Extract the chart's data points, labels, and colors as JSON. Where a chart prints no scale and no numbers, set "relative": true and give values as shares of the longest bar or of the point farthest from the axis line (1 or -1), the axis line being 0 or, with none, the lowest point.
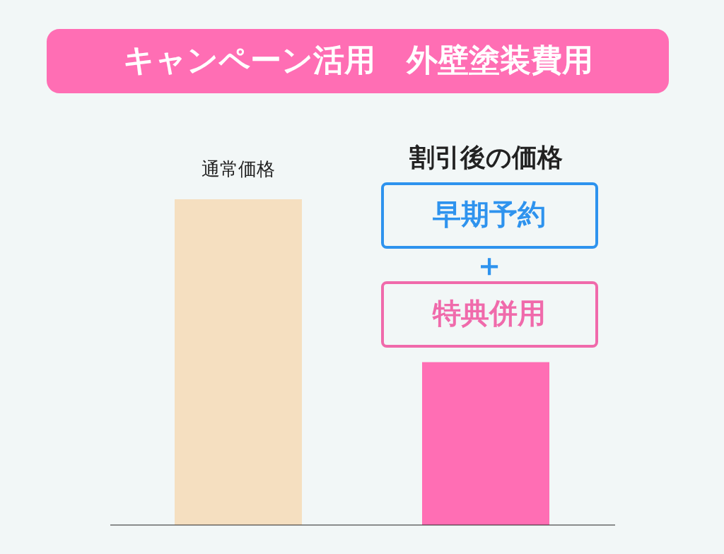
{
  "chart_data": {
    "type": "bar",
    "title": "キャンペーン活用　外壁塗装費用",
    "categories": [
      "通常価格",
      "割引後の価格"
    ],
    "values": [
      1,
      0.5
    ],
    "colors": [
      "#f5dfc0",
      "#ff6eb4"
    ],
    "relative": true,
    "annotations": [
      "早期予約",
      "＋",
      "特典併用"
    ]
  }
}
